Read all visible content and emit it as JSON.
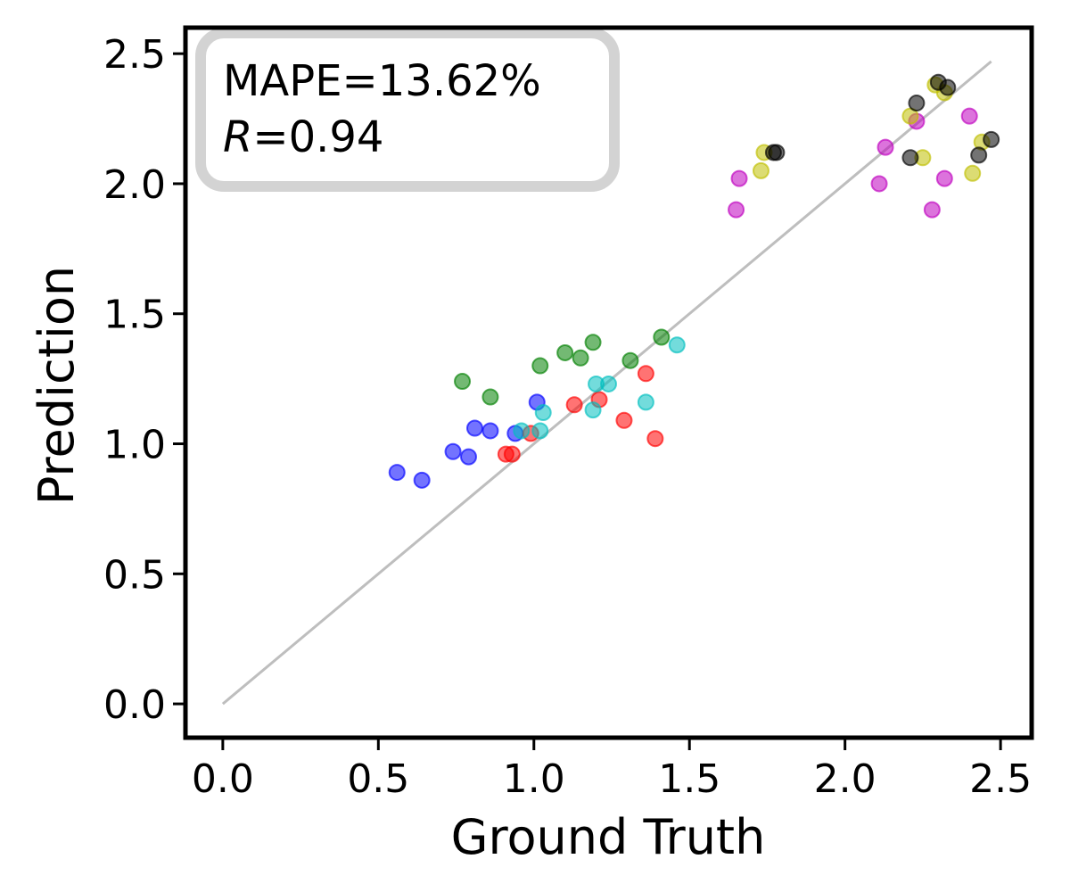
{
  "chart_data": {
    "type": "scatter",
    "title": "",
    "xlabel": "Ground Truth",
    "ylabel": "Prediction",
    "xlim": [
      -0.12,
      2.6
    ],
    "ylim": [
      -0.13,
      2.6
    ],
    "xticks": [
      "0.0",
      "0.5",
      "1.0",
      "1.5",
      "2.0",
      "2.5"
    ],
    "yticks": [
      "0.0",
      "0.5",
      "1.0",
      "1.5",
      "2.0",
      "2.5"
    ],
    "grid": false,
    "legend": "none",
    "reference_line": {
      "x": [
        0.0,
        2.47
      ],
      "y": [
        0.0,
        2.47
      ],
      "color": "#bebebe"
    },
    "annotation": {
      "metric_label": "MAPE",
      "metric_value": "=13.62%",
      "r_label": "R",
      "r_value": "=0.94",
      "position": "top-left"
    },
    "series": [
      {
        "color": "#0000ff",
        "points": [
          [
            0.56,
            0.89
          ],
          [
            0.64,
            0.86
          ],
          [
            0.74,
            0.97
          ],
          [
            0.79,
            0.95
          ],
          [
            0.81,
            1.06
          ],
          [
            0.86,
            1.05
          ],
          [
            0.94,
            1.04
          ],
          [
            1.01,
            1.16
          ]
        ]
      },
      {
        "color": "#008000",
        "points": [
          [
            0.77,
            1.24
          ],
          [
            0.86,
            1.18
          ],
          [
            1.02,
            1.3
          ],
          [
            1.1,
            1.35
          ],
          [
            1.15,
            1.33
          ],
          [
            1.19,
            1.39
          ],
          [
            1.31,
            1.32
          ],
          [
            1.41,
            1.41
          ]
        ]
      },
      {
        "color": "#ff0000",
        "points": [
          [
            0.91,
            0.96
          ],
          [
            0.93,
            0.96
          ],
          [
            0.99,
            1.04
          ],
          [
            1.13,
            1.15
          ],
          [
            1.21,
            1.17
          ],
          [
            1.29,
            1.09
          ],
          [
            1.36,
            1.27
          ],
          [
            1.39,
            1.02
          ]
        ]
      },
      {
        "color": "#00bfbf",
        "points": [
          [
            0.96,
            1.05
          ],
          [
            1.02,
            1.05
          ],
          [
            1.03,
            1.12
          ],
          [
            1.19,
            1.13
          ],
          [
            1.2,
            1.23
          ],
          [
            1.24,
            1.23
          ],
          [
            1.36,
            1.16
          ],
          [
            1.46,
            1.38
          ]
        ]
      },
      {
        "color": "#bf00bf",
        "points": [
          [
            1.65,
            1.9
          ],
          [
            1.66,
            2.02
          ],
          [
            2.11,
            2.0
          ],
          [
            2.13,
            2.14
          ],
          [
            2.23,
            2.24
          ],
          [
            2.28,
            1.9
          ],
          [
            2.32,
            2.02
          ],
          [
            2.4,
            2.26
          ]
        ]
      },
      {
        "color": "#bfbf00",
        "points": [
          [
            1.73,
            2.05
          ],
          [
            1.74,
            2.12
          ],
          [
            2.21,
            2.26
          ],
          [
            2.25,
            2.1
          ],
          [
            2.29,
            2.38
          ],
          [
            2.32,
            2.35
          ],
          [
            2.41,
            2.04
          ],
          [
            2.44,
            2.16
          ]
        ]
      },
      {
        "color": "#000000",
        "points": [
          [
            1.77,
            2.12
          ],
          [
            1.78,
            2.12
          ],
          [
            2.21,
            2.1
          ],
          [
            2.23,
            2.31
          ],
          [
            2.3,
            2.39
          ],
          [
            2.33,
            2.37
          ],
          [
            2.43,
            2.11
          ],
          [
            2.47,
            2.17
          ]
        ]
      }
    ]
  }
}
